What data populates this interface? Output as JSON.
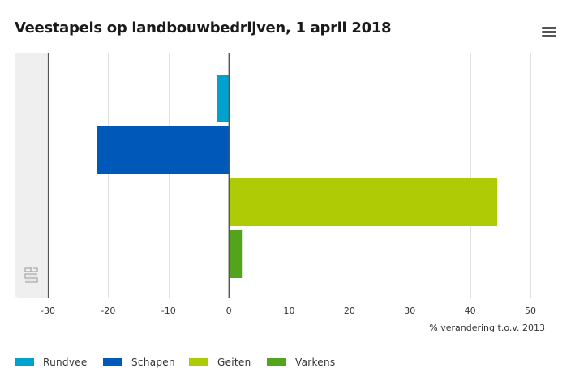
{
  "header": {
    "title": "Veestapels op landbouwbedrijven, 1 april 2018",
    "menu_icon": "hamburger-menu-icon"
  },
  "logo": {
    "name": "cbs-logo",
    "text": "cbs"
  },
  "chart_data": {
    "type": "bar",
    "orientation": "horizontal",
    "title": "Veestapels op landbouwbedrijven, 1 april 2018",
    "xlabel": "% verandering t.o.v. 2013",
    "ylabel": "",
    "xlim": [
      -30,
      50
    ],
    "xticks": [
      -30,
      -20,
      -10,
      0,
      10,
      20,
      30,
      40,
      50
    ],
    "xtick_labels": [
      "-30",
      "-20",
      "-10",
      "0",
      "10",
      "20",
      "30",
      "40",
      "50"
    ],
    "grid": true,
    "legend_position": "bottom-left",
    "series": [
      {
        "name": "Rundvee",
        "value": -2.0,
        "color": "#00a1cd"
      },
      {
        "name": "Schapen",
        "value": -21.8,
        "color": "#0058b8"
      },
      {
        "name": "Geiten",
        "value": 44.5,
        "color": "#afcb05"
      },
      {
        "name": "Varkens",
        "value": 2.3,
        "color": "#53a31d"
      }
    ]
  }
}
